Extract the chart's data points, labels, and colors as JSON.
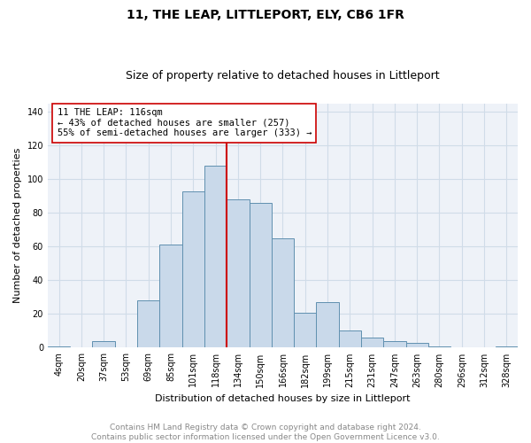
{
  "title": "11, THE LEAP, LITTLEPORT, ELY, CB6 1FR",
  "subtitle": "Size of property relative to detached houses in Littleport",
  "xlabel": "Distribution of detached houses by size in Littleport",
  "ylabel": "Number of detached properties",
  "footnote": "Contains HM Land Registry data © Crown copyright and database right 2024.\nContains public sector information licensed under the Open Government Licence v3.0.",
  "bar_labels": [
    "4sqm",
    "20sqm",
    "37sqm",
    "53sqm",
    "69sqm",
    "85sqm",
    "101sqm",
    "118sqm",
    "134sqm",
    "150sqm",
    "166sqm",
    "182sqm",
    "199sqm",
    "215sqm",
    "231sqm",
    "247sqm",
    "263sqm",
    "280sqm",
    "296sqm",
    "312sqm",
    "328sqm"
  ],
  "bar_values": [
    1,
    0,
    4,
    0,
    28,
    61,
    93,
    108,
    88,
    86,
    65,
    21,
    27,
    10,
    6,
    4,
    3,
    1,
    0,
    0,
    1
  ],
  "bar_color": "#c9d9ea",
  "bar_edge_color": "#6090b0",
  "vline_x_idx": 7,
  "vline_color": "#cc0000",
  "ann_line1": "11 THE LEAP: 116sqm",
  "ann_line2": "← 43% of detached houses are smaller (257)",
  "ann_line3": "55% of semi-detached houses are larger (333) →",
  "annotation_box_edge": "#cc0000",
  "annotation_box_bg": "#ffffff",
  "ylim": [
    0,
    145
  ],
  "yticks": [
    0,
    20,
    40,
    60,
    80,
    100,
    120,
    140
  ],
  "grid_color": "#d0dce8",
  "bg_color": "#eef2f8",
  "title_fontsize": 10,
  "subtitle_fontsize": 9,
  "label_fontsize": 8,
  "tick_fontsize": 7,
  "footnote_fontsize": 6.5,
  "footnote_color": "#888888"
}
